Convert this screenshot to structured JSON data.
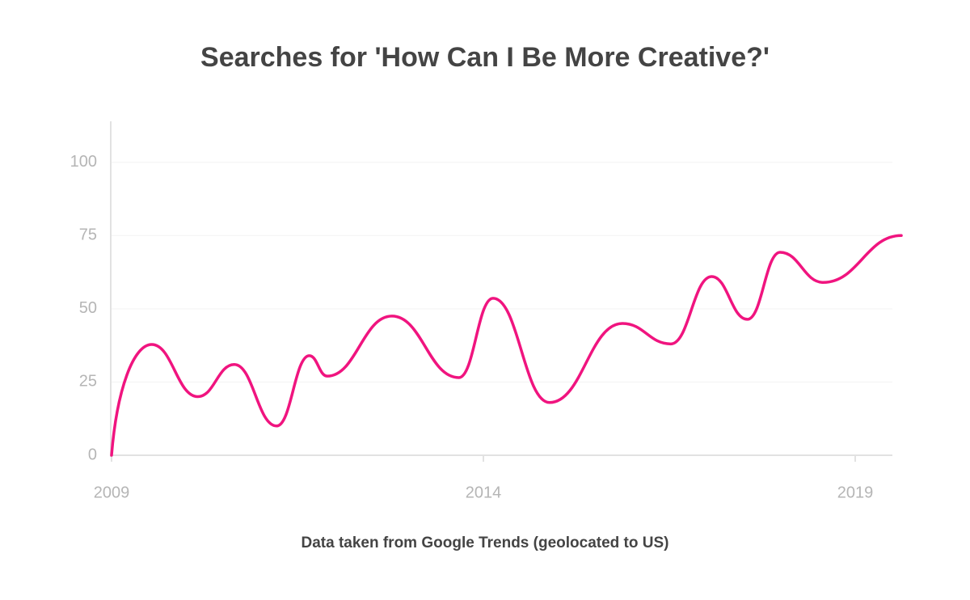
{
  "chart_data": {
    "type": "line",
    "title": "Searches for 'How Can I Be More Creative?'",
    "x_label": "Data taken from Google Trends (geolocated to US)",
    "x": [
      2009,
      2009.54,
      2010.16,
      2010.65,
      2011.22,
      2011.66,
      2011.9,
      2012.77,
      2013.67,
      2014.13,
      2014.89,
      2015.87,
      2016.52,
      2017.07,
      2017.55,
      2017.99,
      2018.57,
      2019.62
    ],
    "series": [
      {
        "name": "Searches",
        "color": "#f0147f",
        "values": [
          0,
          37.8,
          20,
          31,
          10,
          34,
          27,
          47.5,
          26.5,
          53.6,
          18,
          45,
          38,
          61,
          46.4,
          69.3,
          59,
          75
        ]
      }
    ],
    "xlim": [
      2009,
      2019.5
    ],
    "xticks": [
      2009,
      2014,
      2019
    ],
    "ylim": [
      0,
      114
    ],
    "yticks": [
      0,
      25,
      50,
      75,
      100
    ],
    "grid": true
  }
}
